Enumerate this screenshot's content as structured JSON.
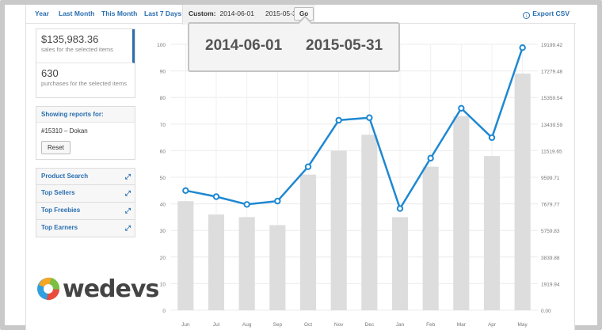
{
  "tabs": [
    {
      "label": "Year"
    },
    {
      "label": "Last Month"
    },
    {
      "label": "This Month"
    },
    {
      "label": "Last 7 Days"
    }
  ],
  "custom": {
    "label": "Custom:",
    "from": "2014-06-01",
    "to": "2015-05-31",
    "go_label": "Go"
  },
  "export_label": "Export CSV",
  "stats": [
    {
      "value": "$135,983.36",
      "caption": "sales for the selected items"
    },
    {
      "value": "630",
      "caption": "purchases for the selected items"
    }
  ],
  "report": {
    "heading": "Showing reports for:",
    "item": "#15310 – Dokan",
    "reset_label": "Reset"
  },
  "widgets": [
    {
      "label": "Product Search"
    },
    {
      "label": "Top Sellers"
    },
    {
      "label": "Top Freebies"
    },
    {
      "label": "Top Earners"
    }
  ],
  "logo_text": "wedevs",
  "popup": {
    "from": "2014-06-01",
    "to": "2015-05-31"
  },
  "chart_data": {
    "type": "bar",
    "categories": [
      "Jun",
      "Jul",
      "Aug",
      "Sep",
      "Oct",
      "Nov",
      "Dec",
      "Jan",
      "Feb",
      "Mar",
      "Apr",
      "May"
    ],
    "series": [
      {
        "type": "bar",
        "values": [
          41,
          36,
          35,
          32,
          51,
          60,
          66,
          35,
          54,
          73,
          58,
          89
        ]
      },
      {
        "type": "line",
        "values": [
          8640,
          8200,
          7640,
          7880,
          10360,
          13720,
          13900,
          7340,
          10980,
          14580,
          12460,
          18960
        ]
      }
    ],
    "y_left": {
      "min": 0,
      "max": 100,
      "ticks": [
        "0",
        "10",
        "20",
        "30",
        "40",
        "50",
        "60",
        "70",
        "80",
        "90",
        "100"
      ]
    },
    "y_right": {
      "min": 0,
      "max": 19199.42,
      "ticks": [
        "0.00",
        "1919.94",
        "3839.88",
        "5759.83",
        "7679.77",
        "9599.71",
        "11519.65",
        "13439.59",
        "15359.54",
        "17279.48",
        "19199.42"
      ]
    },
    "grid": true,
    "colors": {
      "bar": "#dddddd",
      "line": "#1e88d2"
    }
  }
}
